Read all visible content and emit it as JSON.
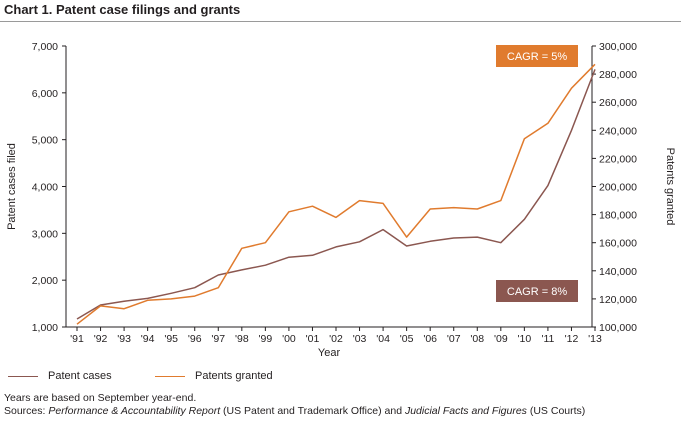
{
  "title": "Chart 1. Patent case filings and grants",
  "chart_data": {
    "type": "line",
    "x": [
      "'91",
      "'92",
      "'93",
      "'94",
      "'95",
      "'96",
      "'97",
      "'98",
      "'99",
      "'00",
      "'01",
      "'02",
      "'03",
      "'04",
      "'05",
      "'06",
      "'07",
      "'08",
      "'09",
      "'10",
      "'11",
      "'12",
      "'13"
    ],
    "xlabel": "Year",
    "ylabel_left": "Patent cases filed",
    "ylabel_right": "Patents granted",
    "ylim_left": [
      1000,
      7000
    ],
    "ylim_right": [
      100000,
      300000
    ],
    "yticks_left": [
      "1,000",
      "2,000",
      "3,000",
      "4,000",
      "5,000",
      "6,000",
      "7,000"
    ],
    "yticks_right": [
      "100,000",
      "120,000",
      "140,000",
      "160,000",
      "180,000",
      "200,000",
      "220,000",
      "240,000",
      "260,000",
      "280,000",
      "300,000"
    ],
    "grid": false,
    "series": [
      {
        "name": "Patent cases",
        "axis": "left",
        "color": "#8b5750",
        "values": [
          1170,
          1470,
          1550,
          1610,
          1720,
          1840,
          2110,
          2220,
          2320,
          2490,
          2530,
          2710,
          2820,
          3080,
          2730,
          2830,
          2900,
          2920,
          2800,
          3300,
          4020,
          5200,
          6500
        ]
      },
      {
        "name": "Patents granted",
        "axis": "right",
        "color": "#e07b2e",
        "values": [
          102000,
          115000,
          113000,
          119000,
          120000,
          122000,
          128000,
          156000,
          160000,
          182000,
          186000,
          178000,
          190000,
          188000,
          164000,
          184000,
          185000,
          184000,
          190000,
          234000,
          245000,
          270000,
          287000
        ]
      }
    ],
    "annotations": [
      {
        "text": "CAGR = 5%",
        "color": "#e07b2e",
        "near_series": "Patents granted"
      },
      {
        "text": "CAGR = 8%",
        "color": "#8b5750",
        "near_series": "Patent cases"
      }
    ],
    "legend": {
      "placement": "bottom-left",
      "items": [
        "Patent cases",
        "Patents granted"
      ]
    }
  },
  "notes": {
    "line1": "Years are based on September year-end.",
    "sources_prefix": "Sources: ",
    "source1": "Performance & Accountability Report",
    "source1_suffix": " (US Patent and Trademark Office) and ",
    "source2": "Judicial Facts and Figures",
    "source2_suffix": " (US Courts)"
  }
}
